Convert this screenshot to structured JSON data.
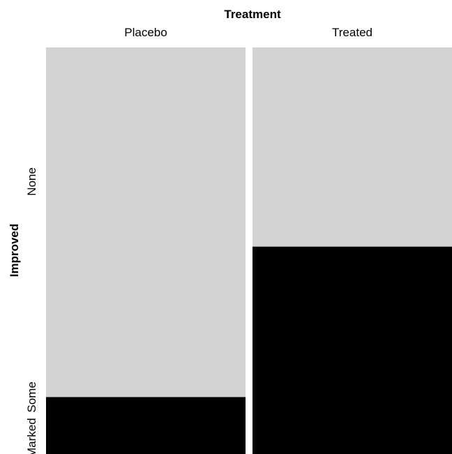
{
  "chart_data": {
    "type": "mosaic",
    "x_variable": "Treatment",
    "y_variable": "Improved",
    "categories": [
      "Placebo",
      "Treated"
    ],
    "y_levels": [
      "None",
      "Some",
      "Marked"
    ],
    "series": [
      {
        "name": "None",
        "values": [
          0.86,
          0.49
        ]
      },
      {
        "name": "Some",
        "values": [
          0.0,
          0.0
        ]
      },
      {
        "name": "Marked",
        "values": [
          0.14,
          0.51
        ]
      }
    ],
    "column_widths": [
      0.5,
      0.5
    ],
    "y_level_label_positions": [
      0.67,
      0.14,
      0.04
    ],
    "colors": {
      "None": "#d3d3d3",
      "Some": "#808080",
      "Marked": "#000000"
    },
    "legend": "none",
    "grid": false
  }
}
